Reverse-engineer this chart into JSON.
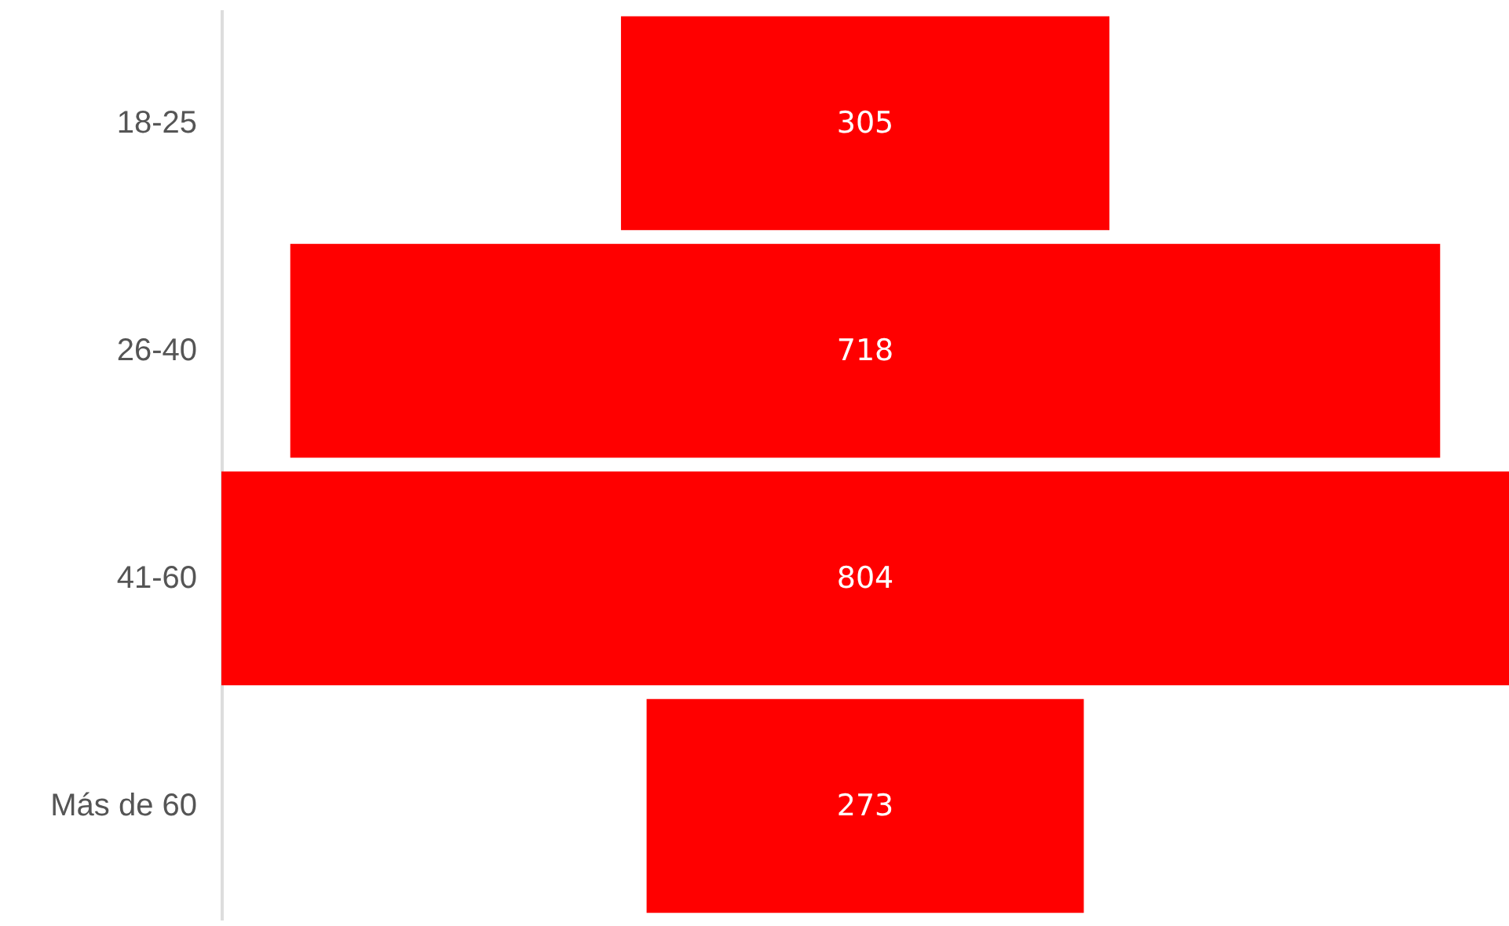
{
  "chart_data": {
    "type": "other",
    "categories": [
      "18-25",
      "26-40",
      "41-60",
      "Más de 60"
    ],
    "values": [
      305,
      718,
      804,
      273
    ],
    "color": "#ff0000",
    "data_labels": true
  }
}
